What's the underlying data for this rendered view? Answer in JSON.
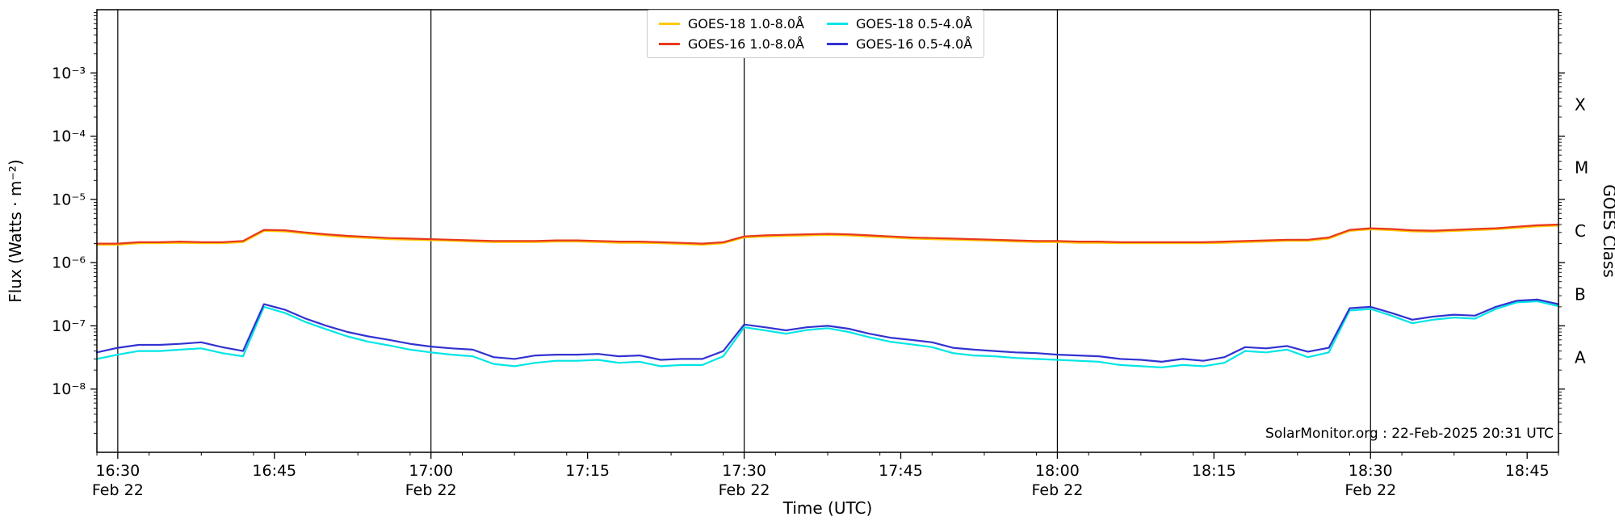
{
  "chart_data": {
    "type": "line",
    "title": "",
    "xlabel": "Time (UTC)",
    "ylabel": "Flux (Watts · m⁻²)",
    "ylabel_right": "GOES Class",
    "annotation": "SolarMonitor.org : 22-Feb-2025 20:31 UTC",
    "legend_position": "top-center",
    "grid": "vertical-half-hour",
    "x_range": [
      0,
      140
    ],
    "x_start_time": "16:28",
    "y_range": [
      1e-09,
      0.01
    ],
    "x_ticks": [
      {
        "pos": 2,
        "label": "16:30",
        "date": "Feb 22",
        "grid": true
      },
      {
        "pos": 17,
        "label": "16:45"
      },
      {
        "pos": 32,
        "label": "17:00",
        "date": "Feb 22",
        "grid": true
      },
      {
        "pos": 47,
        "label": "17:15"
      },
      {
        "pos": 62,
        "label": "17:30",
        "date": "Feb 22",
        "grid": true
      },
      {
        "pos": 77,
        "label": "17:45"
      },
      {
        "pos": 92,
        "label": "18:00",
        "date": "Feb 22",
        "grid": true
      },
      {
        "pos": 107,
        "label": "18:15"
      },
      {
        "pos": 122,
        "label": "18:30",
        "date": "Feb 22",
        "grid": true
      },
      {
        "pos": 137,
        "label": "18:45"
      }
    ],
    "y_ticks": [
      {
        "exp": -3,
        "label": "10⁻³"
      },
      {
        "exp": -4,
        "label": "10⁻⁴"
      },
      {
        "exp": -5,
        "label": "10⁻⁵"
      },
      {
        "exp": -6,
        "label": "10⁻⁶"
      },
      {
        "exp": -7,
        "label": "10⁻⁷"
      },
      {
        "exp": -8,
        "label": "10⁻⁸"
      }
    ],
    "goes_classes": [
      {
        "label": "X",
        "value": 0.000316
      },
      {
        "label": "M",
        "value": 3.16e-05
      },
      {
        "label": "C",
        "value": 3.16e-06
      },
      {
        "label": "B",
        "value": 3.16e-07
      },
      {
        "label": "A",
        "value": 3.16e-08
      }
    ],
    "x": [
      0,
      2,
      4,
      6,
      8,
      10,
      12,
      14,
      16,
      18,
      20,
      22,
      24,
      26,
      28,
      30,
      32,
      34,
      36,
      38,
      40,
      42,
      44,
      46,
      48,
      50,
      52,
      54,
      56,
      58,
      60,
      62,
      64,
      66,
      68,
      70,
      72,
      74,
      76,
      78,
      80,
      82,
      84,
      86,
      88,
      90,
      92,
      94,
      96,
      98,
      100,
      102,
      104,
      106,
      108,
      110,
      112,
      114,
      116,
      118,
      120,
      122,
      124,
      126,
      128,
      130,
      132,
      134,
      136,
      138,
      140
    ],
    "series": [
      {
        "name": "GOES-18 1.0-8.0Å",
        "color": "#ffc800",
        "values": [
          1.92e-06,
          1.92e-06,
          2.02e-06,
          2.02e-06,
          2.06e-06,
          2.02e-06,
          2.02e-06,
          2.11e-06,
          3.17e-06,
          3.12e-06,
          2.88e-06,
          2.69e-06,
          2.54e-06,
          2.45e-06,
          2.35e-06,
          2.3e-06,
          2.26e-06,
          2.21e-06,
          2.16e-06,
          2.11e-06,
          2.11e-06,
          2.11e-06,
          2.16e-06,
          2.16e-06,
          2.11e-06,
          2.06e-06,
          2.06e-06,
          2.02e-06,
          1.97e-06,
          1.92e-06,
          2.02e-06,
          2.5e-06,
          2.59e-06,
          2.64e-06,
          2.69e-06,
          2.74e-06,
          2.69e-06,
          2.59e-06,
          2.5e-06,
          2.4e-06,
          2.35e-06,
          2.3e-06,
          2.26e-06,
          2.21e-06,
          2.16e-06,
          2.11e-06,
          2.11e-06,
          2.06e-06,
          2.06e-06,
          2.02e-06,
          2.02e-06,
          2.02e-06,
          2.02e-06,
          2.02e-06,
          2.06e-06,
          2.11e-06,
          2.16e-06,
          2.21e-06,
          2.21e-06,
          2.4e-06,
          3.17e-06,
          3.36e-06,
          3.26e-06,
          3.12e-06,
          3.07e-06,
          3.17e-06,
          3.26e-06,
          3.36e-06,
          3.55e-06,
          3.74e-06,
          3.84e-06
        ]
      },
      {
        "name": "GOES-16 1.0-8.0Å",
        "color": "#e8391d",
        "values": [
          2e-06,
          2e-06,
          2.1e-06,
          2.1e-06,
          2.15e-06,
          2.1e-06,
          2.1e-06,
          2.2e-06,
          3.3e-06,
          3.25e-06,
          3e-06,
          2.8e-06,
          2.65e-06,
          2.55e-06,
          2.45e-06,
          2.4e-06,
          2.35e-06,
          2.3e-06,
          2.25e-06,
          2.2e-06,
          2.2e-06,
          2.2e-06,
          2.25e-06,
          2.25e-06,
          2.2e-06,
          2.15e-06,
          2.15e-06,
          2.1e-06,
          2.05e-06,
          2e-06,
          2.1e-06,
          2.6e-06,
          2.7e-06,
          2.75e-06,
          2.8e-06,
          2.85e-06,
          2.8e-06,
          2.7e-06,
          2.6e-06,
          2.5e-06,
          2.45e-06,
          2.4e-06,
          2.35e-06,
          2.3e-06,
          2.25e-06,
          2.2e-06,
          2.2e-06,
          2.15e-06,
          2.15e-06,
          2.1e-06,
          2.1e-06,
          2.1e-06,
          2.1e-06,
          2.1e-06,
          2.15e-06,
          2.2e-06,
          2.25e-06,
          2.3e-06,
          2.3e-06,
          2.5e-06,
          3.3e-06,
          3.5e-06,
          3.4e-06,
          3.25e-06,
          3.2e-06,
          3.3e-06,
          3.4e-06,
          3.5e-06,
          3.7e-06,
          3.9e-06,
          4e-06
        ]
      },
      {
        "name": "GOES-18 0.5-4.0Å",
        "color": "#00e5e5",
        "values": [
          3e-08,
          3.5e-08,
          4e-08,
          4e-08,
          4.2e-08,
          4.4e-08,
          3.7e-08,
          3.3e-08,
          2e-07,
          1.6e-07,
          1.15e-07,
          8.8e-08,
          6.8e-08,
          5.6e-08,
          4.9e-08,
          4.2e-08,
          3.8e-08,
          3.5e-08,
          3.3e-08,
          2.5e-08,
          2.3e-08,
          2.6e-08,
          2.8e-08,
          2.8e-08,
          2.9e-08,
          2.6e-08,
          2.7e-08,
          2.3e-08,
          2.4e-08,
          2.4e-08,
          3.3e-08,
          9.5e-08,
          8.5e-08,
          7.5e-08,
          8.6e-08,
          9.2e-08,
          8e-08,
          6.6e-08,
          5.6e-08,
          5.1e-08,
          4.6e-08,
          3.7e-08,
          3.4e-08,
          3.3e-08,
          3.1e-08,
          3e-08,
          2.9e-08,
          2.8e-08,
          2.7e-08,
          2.4e-08,
          2.3e-08,
          2.2e-08,
          2.4e-08,
          2.3e-08,
          2.6e-08,
          4e-08,
          3.8e-08,
          4.2e-08,
          3.2e-08,
          3.8e-08,
          1.75e-07,
          1.85e-07,
          1.45e-07,
          1.1e-07,
          1.25e-07,
          1.35e-07,
          1.3e-07,
          1.85e-07,
          2.35e-07,
          2.45e-07,
          2.05e-07
        ]
      },
      {
        "name": "GOES-16 0.5-4.0Å",
        "color": "#3232d2",
        "values": [
          3.8e-08,
          4.5e-08,
          5e-08,
          5e-08,
          5.2e-08,
          5.5e-08,
          4.6e-08,
          4e-08,
          2.2e-07,
          1.8e-07,
          1.3e-07,
          1e-07,
          8e-08,
          6.8e-08,
          6e-08,
          5.2e-08,
          4.7e-08,
          4.4e-08,
          4.2e-08,
          3.2e-08,
          3e-08,
          3.4e-08,
          3.5e-08,
          3.5e-08,
          3.6e-08,
          3.3e-08,
          3.4e-08,
          2.9e-08,
          3e-08,
          3e-08,
          4e-08,
          1.05e-07,
          9.5e-08,
          8.5e-08,
          9.5e-08,
          1e-07,
          9e-08,
          7.5e-08,
          6.5e-08,
          6e-08,
          5.5e-08,
          4.5e-08,
          4.2e-08,
          4e-08,
          3.8e-08,
          3.7e-08,
          3.5e-08,
          3.4e-08,
          3.3e-08,
          3e-08,
          2.9e-08,
          2.7e-08,
          3e-08,
          2.8e-08,
          3.2e-08,
          4.6e-08,
          4.4e-08,
          4.8e-08,
          3.9e-08,
          4.5e-08,
          1.9e-07,
          2e-07,
          1.6e-07,
          1.25e-07,
          1.4e-07,
          1.5e-07,
          1.45e-07,
          2e-07,
          2.5e-07,
          2.6e-07,
          2.2e-07
        ]
      }
    ]
  }
}
